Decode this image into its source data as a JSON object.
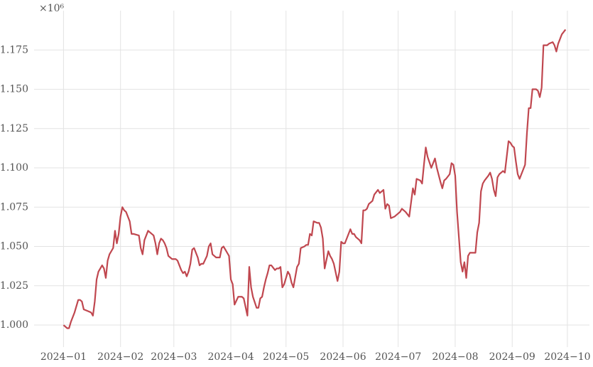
{
  "chart_data": {
    "type": "line",
    "y_offset_label": "×10⁶",
    "color": "#c0474f",
    "grid": true,
    "xlim": [
      -16,
      286
    ],
    "ylim": [
      0.986,
      1.2
    ],
    "xticks": [
      {
        "value": 0,
        "label": "2024−01"
      },
      {
        "value": 31,
        "label": "2024−02"
      },
      {
        "value": 60,
        "label": "2024−03"
      },
      {
        "value": 91,
        "label": "2024−04"
      },
      {
        "value": 121,
        "label": "2024−05"
      },
      {
        "value": 152,
        "label": "2024−06"
      },
      {
        "value": 182,
        "label": "2024−07"
      },
      {
        "value": 213,
        "label": "2024−08"
      },
      {
        "value": 244,
        "label": "2024−09"
      },
      {
        "value": 274,
        "label": "2024−10"
      }
    ],
    "yticks": [
      {
        "value": 1.0,
        "label": "1.000"
      },
      {
        "value": 1.025,
        "label": "1.025"
      },
      {
        "value": 1.05,
        "label": "1.050"
      },
      {
        "value": 1.075,
        "label": "1.075"
      },
      {
        "value": 1.1,
        "label": "1.100"
      },
      {
        "value": 1.125,
        "label": "1.125"
      },
      {
        "value": 1.15,
        "label": "1.150"
      },
      {
        "value": 1.175,
        "label": "1.175"
      }
    ],
    "x": [
      0,
      2,
      3,
      4,
      6,
      8,
      9,
      10,
      11,
      13,
      15,
      16,
      17,
      18,
      19,
      21,
      22,
      23,
      24,
      25,
      27,
      28,
      29,
      30,
      31,
      32,
      33,
      34,
      35,
      36,
      37,
      38,
      41,
      42,
      43,
      44,
      46,
      47,
      49,
      50,
      51,
      52,
      53,
      54,
      55,
      56,
      57,
      58,
      59,
      61,
      62,
      63,
      64,
      65,
      66,
      67,
      68,
      69,
      70,
      71,
      73,
      74,
      75,
      76,
      78,
      79,
      80,
      81,
      82,
      83,
      85,
      86,
      87,
      88,
      89,
      90,
      91,
      92,
      93,
      95,
      97,
      98,
      100,
      101,
      102,
      103,
      105,
      106,
      107,
      108,
      109,
      110,
      111,
      112,
      113,
      115,
      116,
      117,
      118,
      119,
      120,
      122,
      123,
      124,
      125,
      127,
      128,
      129,
      131,
      132,
      133,
      134,
      135,
      136,
      138,
      139,
      140,
      141,
      142,
      144,
      145,
      146,
      147,
      149,
      150,
      151,
      152,
      153,
      155,
      156,
      157,
      158,
      159,
      161,
      162,
      163,
      164,
      165,
      166,
      168,
      169,
      171,
      172,
      173,
      174,
      175,
      176,
      177,
      178,
      180,
      181,
      183,
      184,
      185,
      186,
      188,
      189,
      190,
      191,
      192,
      194,
      195,
      196,
      197,
      198,
      200,
      201,
      202,
      203,
      205,
      206,
      207,
      208,
      210,
      211,
      212,
      213,
      214,
      215,
      216,
      217,
      218,
      219,
      220,
      221,
      222,
      224,
      225,
      226,
      227,
      228,
      229,
      231,
      232,
      233,
      234,
      235,
      236,
      237,
      238,
      239,
      240,
      241,
      242,
      243,
      244,
      245,
      246,
      247,
      248,
      249,
      251,
      252,
      253,
      254,
      255,
      257,
      258,
      259,
      260,
      261,
      263,
      264,
      266,
      267,
      268,
      269,
      270,
      271,
      273
    ],
    "values": [
      1.0,
      0.998,
      0.998,
      1.002,
      1.008,
      1.016,
      1.016,
      1.015,
      1.01,
      1.009,
      1.008,
      1.006,
      1.015,
      1.029,
      1.034,
      1.038,
      1.036,
      1.03,
      1.041,
      1.045,
      1.049,
      1.06,
      1.052,
      1.058,
      1.069,
      1.075,
      1.073,
      1.072,
      1.069,
      1.066,
      1.058,
      1.058,
      1.057,
      1.049,
      1.045,
      1.054,
      1.06,
      1.059,
      1.057,
      1.052,
      1.045,
      1.052,
      1.055,
      1.054,
      1.052,
      1.049,
      1.044,
      1.043,
      1.042,
      1.042,
      1.041,
      1.038,
      1.035,
      1.033,
      1.034,
      1.031,
      1.034,
      1.039,
      1.048,
      1.049,
      1.043,
      1.038,
      1.039,
      1.039,
      1.044,
      1.05,
      1.052,
      1.045,
      1.044,
      1.043,
      1.043,
      1.049,
      1.05,
      1.048,
      1.046,
      1.044,
      1.029,
      1.026,
      1.013,
      1.018,
      1.018,
      1.017,
      1.006,
      1.037,
      1.024,
      1.018,
      1.011,
      1.011,
      1.017,
      1.018,
      1.024,
      1.029,
      1.033,
      1.038,
      1.038,
      1.035,
      1.036,
      1.036,
      1.037,
      1.024,
      1.026,
      1.034,
      1.032,
      1.027,
      1.024,
      1.037,
      1.039,
      1.049,
      1.05,
      1.051,
      1.051,
      1.058,
      1.057,
      1.066,
      1.065,
      1.065,
      1.062,
      1.055,
      1.036,
      1.047,
      1.044,
      1.042,
      1.039,
      1.028,
      1.034,
      1.053,
      1.052,
      1.052,
      1.058,
      1.061,
      1.058,
      1.058,
      1.056,
      1.054,
      1.052,
      1.073,
      1.073,
      1.074,
      1.077,
      1.079,
      1.083,
      1.086,
      1.084,
      1.085,
      1.086,
      1.074,
      1.077,
      1.076,
      1.068,
      1.069,
      1.07,
      1.072,
      1.074,
      1.073,
      1.072,
      1.069,
      1.078,
      1.087,
      1.083,
      1.093,
      1.092,
      1.09,
      1.102,
      1.113,
      1.107,
      1.1,
      1.103,
      1.106,
      1.1,
      1.091,
      1.087,
      1.092,
      1.093,
      1.096,
      1.103,
      1.102,
      1.095,
      1.072,
      1.056,
      1.04,
      1.034,
      1.04,
      1.03,
      1.044,
      1.046,
      1.046,
      1.046,
      1.059,
      1.065,
      1.085,
      1.09,
      1.092,
      1.095,
      1.097,
      1.093,
      1.086,
      1.082,
      1.094,
      1.096,
      1.097,
      1.098,
      1.097,
      1.107,
      1.117,
      1.116,
      1.114,
      1.113,
      1.104,
      1.096,
      1.093,
      1.096,
      1.102,
      1.122,
      1.138,
      1.138,
      1.15,
      1.15,
      1.149,
      1.145,
      1.151,
      1.178,
      1.178,
      1.179,
      1.18,
      1.178,
      1.174,
      1.179,
      1.182,
      1.185,
      1.188
    ]
  }
}
